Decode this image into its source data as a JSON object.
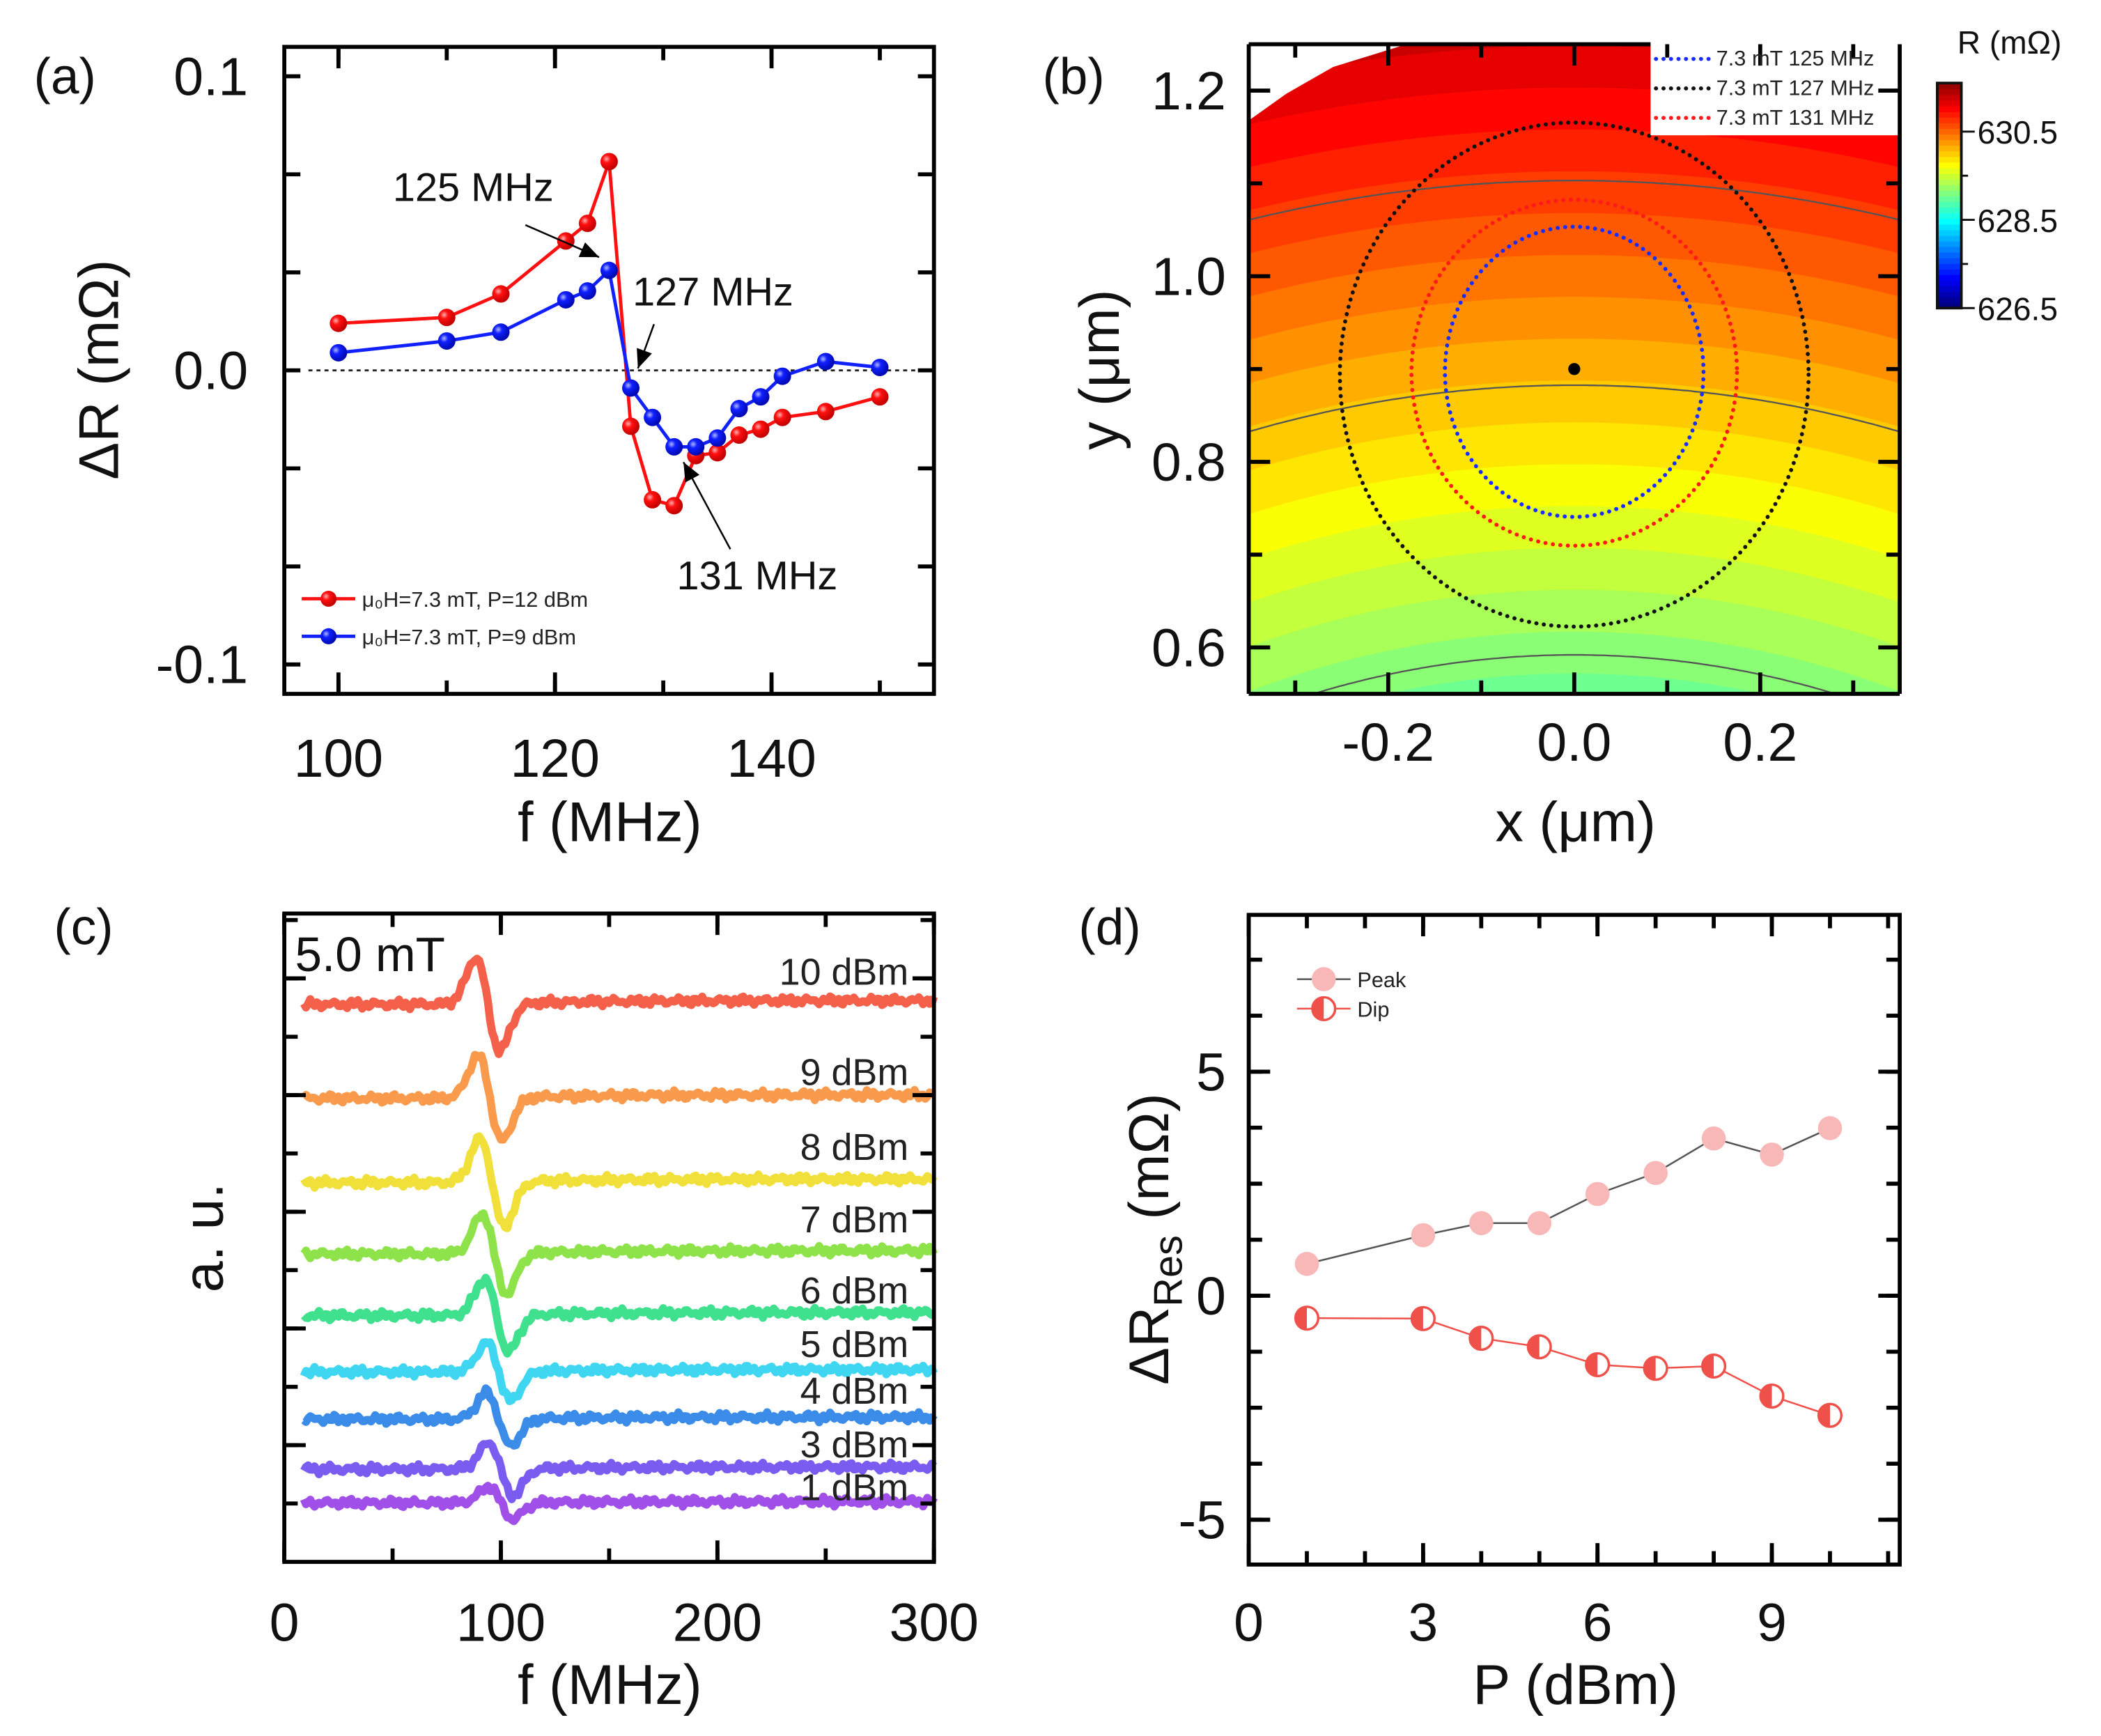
{
  "panel_labels": [
    "(a)",
    "(b)",
    "(c)",
    "(d)"
  ],
  "chart_data": [
    {
      "panel": "(a)",
      "type": "line",
      "xlabel": "f (MHz)",
      "ylabel": "ΔR (mΩ)",
      "xlim": [
        95,
        155
      ],
      "ylim": [
        -0.11,
        0.11
      ],
      "xticks": [
        100,
        120,
        140
      ],
      "xtick_labels": [
        "100",
        "120",
        "140"
      ],
      "yticks": [
        -0.1,
        0.0,
        0.1
      ],
      "ytick_labels": [
        "-0.1",
        "0.0",
        "0.1"
      ],
      "zero_line": "dotted",
      "legend": "bottom-left",
      "series": [
        {
          "name": "μ₀H=7.3 mT, P=12 dBm",
          "color": "#ff1010",
          "x": [
            100,
            110,
            115,
            121,
            123,
            125,
            127,
            129,
            131,
            133,
            135,
            137,
            139,
            141,
            145,
            150
          ],
          "y": [
            0.016,
            0.018,
            0.026,
            0.044,
            0.05,
            0.071,
            -0.019,
            -0.044,
            -0.046,
            -0.029,
            -0.028,
            -0.022,
            -0.02,
            -0.016,
            -0.014,
            -0.009
          ]
        },
        {
          "name": "μ₀H=7.3 mT, P=9 dBm",
          "color": "#1020ff",
          "x": [
            100,
            110,
            115,
            121,
            123,
            125,
            127,
            129,
            131,
            133,
            135,
            137,
            139,
            141,
            145,
            150
          ],
          "y": [
            0.006,
            0.01,
            0.013,
            0.024,
            0.027,
            0.034,
            -0.006,
            -0.016,
            -0.026,
            -0.026,
            -0.023,
            -0.013,
            -0.009,
            -0.002,
            0.003,
            0.001
          ]
        }
      ],
      "annotations": [
        {
          "text": "125 MHz",
          "x": 125
        },
        {
          "text": "127 MHz",
          "x": 127
        },
        {
          "text": "131 MHz",
          "x": 131
        }
      ]
    },
    {
      "panel": "(b)",
      "type": "heatmap",
      "xlabel": "x (μm)",
      "ylabel": "y (μm)",
      "xlim": [
        -0.35,
        0.35
      ],
      "ylim": [
        0.55,
        1.25
      ],
      "xticks": [
        -0.2,
        0.0,
        0.2
      ],
      "xtick_labels": [
        "-0.2",
        "0.0",
        "0.2"
      ],
      "yticks": [
        0.6,
        0.8,
        1.0,
        1.2
      ],
      "ytick_labels": [
        "0.6",
        "0.8",
        "1.0",
        "1.2"
      ],
      "colorbar": {
        "label": "R (mΩ)",
        "range": [
          626.5,
          631.6
        ],
        "ticks": [
          626.5,
          628.5,
          630.5
        ],
        "tick_labels": [
          "626.5",
          "628.5",
          "630.5"
        ],
        "colormap": "jet"
      },
      "field": {
        "center": [
          0,
          -0.37
        ],
        "value_at_bottom": 628.9,
        "value_at_top": 631.1,
        "contour_lines_y_at_x0": [
          0.59,
          0.88,
          1.1
        ]
      },
      "center_point": [
        0,
        0.9
      ],
      "legend": "top-right",
      "series": [
        {
          "name": "7.3 mT 125 MHz",
          "color": "#1a2cff",
          "center": [
            0,
            0.897
          ],
          "half_width": 0.139,
          "half_height": 0.156
        },
        {
          "name": "7.3 mT 127 MHz",
          "color": "#111111",
          "center": [
            0,
            0.894
          ],
          "half_width": 0.252,
          "half_height": 0.271
        },
        {
          "name": "7.3 mT 131 MHz",
          "color": "#ff1a1a",
          "center": [
            0,
            0.896
          ],
          "half_width": 0.175,
          "half_height": 0.186
        }
      ]
    },
    {
      "panel": "(c)",
      "type": "line",
      "xlabel": "f (MHz)",
      "ylabel": "a. u.",
      "annotation": "5.0 mT",
      "xlim": [
        0,
        300
      ],
      "ylim": [
        0,
        10
      ],
      "xticks": [
        0,
        100,
        200,
        300
      ],
      "xtick_labels": [
        "0",
        "100",
        "200",
        "300"
      ],
      "series": [
        {
          "name": "10 dBm",
          "color": "#f4604a",
          "baseline": 8.6,
          "amplitude": 0.72,
          "resonance": 94
        },
        {
          "name": "9 dBm",
          "color": "#f99a4c",
          "baseline": 7.15,
          "amplitude": 0.66,
          "resonance": 95
        },
        {
          "name": "8 dBm",
          "color": "#f2e03a",
          "baseline": 5.85,
          "amplitude": 0.68,
          "resonance": 96
        },
        {
          "name": "7 dBm",
          "color": "#8ee34a",
          "baseline": 4.75,
          "amplitude": 0.62,
          "resonance": 97
        },
        {
          "name": "6 dBm",
          "color": "#3fe08e",
          "baseline": 3.8,
          "amplitude": 0.56,
          "resonance": 98
        },
        {
          "name": "5 dBm",
          "color": "#3fd6f2",
          "baseline": 2.93,
          "amplitude": 0.45,
          "resonance": 99
        },
        {
          "name": "4 dBm",
          "color": "#3a8ce8",
          "baseline": 2.2,
          "amplitude": 0.41,
          "resonance": 99
        },
        {
          "name": "3 dBm",
          "color": "#7a5cf0",
          "baseline": 1.43,
          "amplitude": 0.41,
          "resonance": 100
        },
        {
          "name": "1 dBm",
          "color": "#a050e8",
          "baseline": 0.91,
          "amplitude": 0.25,
          "resonance": 100
        }
      ]
    },
    {
      "panel": "(d)",
      "type": "line",
      "xlabel": "P (dBm)",
      "ylabel": {
        "main": "ΔR",
        "sub": "Res",
        "unit": " (mΩ)"
      },
      "xlim": [
        0,
        11.2
      ],
      "ylim": [
        -6,
        8.5
      ],
      "xticks": [
        0,
        3,
        6,
        9
      ],
      "xtick_labels": [
        "0",
        "3",
        "6",
        "9"
      ],
      "yticks": [
        -5,
        0,
        5
      ],
      "ytick_labels": [
        "-5",
        "0",
        "5"
      ],
      "legend": "top-left",
      "series": [
        {
          "name": "Peak",
          "color": "#f9b8b8",
          "line_color": "#555555",
          "x": [
            1,
            3,
            4,
            5,
            6,
            7,
            8,
            9,
            10
          ],
          "y": [
            0.71,
            1.35,
            1.62,
            1.62,
            2.27,
            2.74,
            3.51,
            3.15,
            3.74
          ]
        },
        {
          "name": "Dip",
          "color": "#f0504a",
          "line_color": "#f0504a",
          "x": [
            1,
            3,
            4,
            5,
            6,
            7,
            8,
            9,
            10
          ],
          "y": [
            -0.5,
            -0.51,
            -0.95,
            -1.14,
            -1.54,
            -1.62,
            -1.57,
            -2.24,
            -2.67
          ]
        }
      ]
    }
  ]
}
